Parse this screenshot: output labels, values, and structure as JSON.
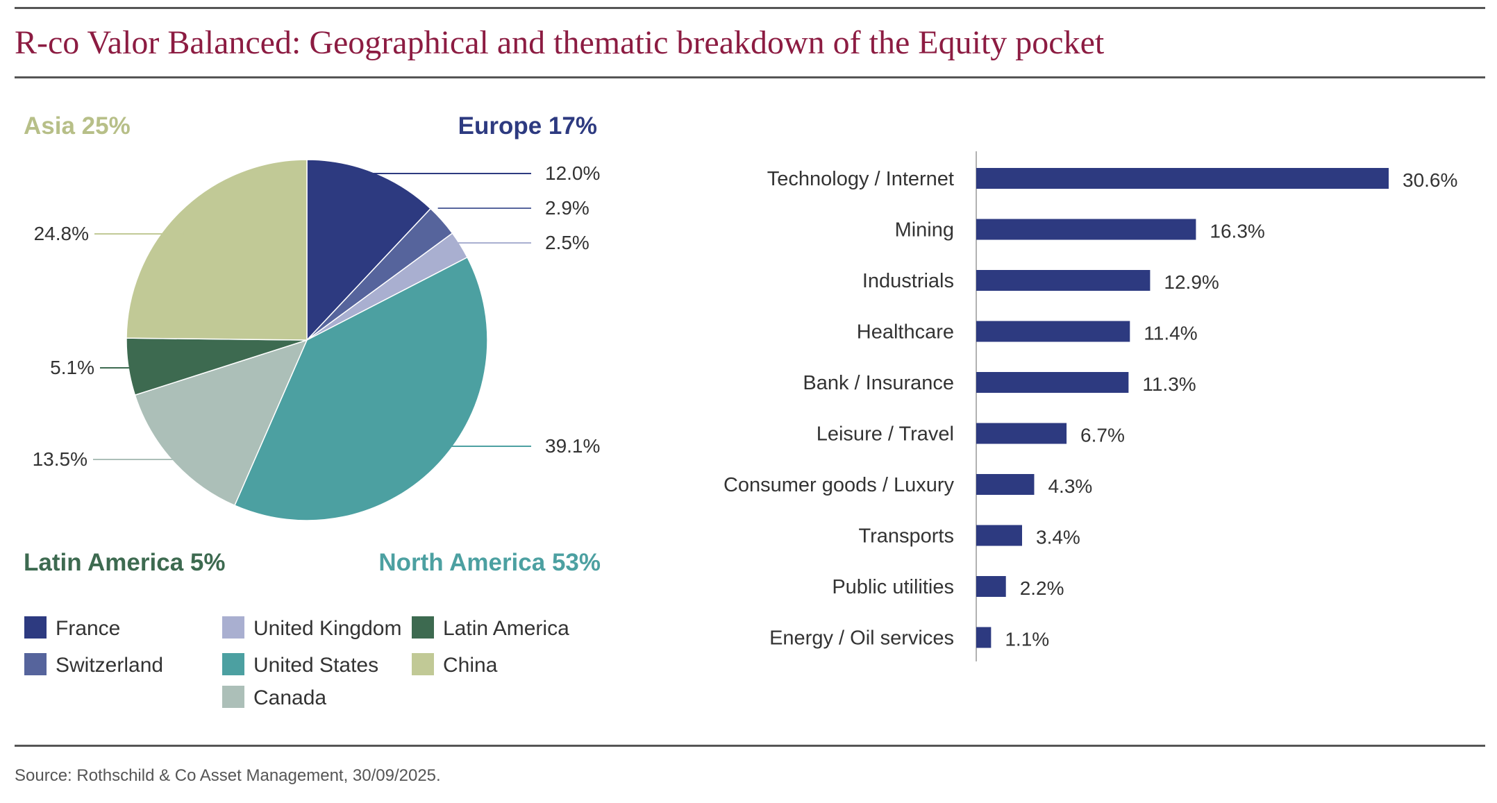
{
  "title": "R-co Valor Balanced: Geographical and thematic breakdown of the Equity pocket",
  "source": "Source: Rothschild & Co Asset Management, 30/09/2025.",
  "colors": {
    "France": "#2d3a80",
    "Switzerland": "#56649c",
    "United Kingdom": "#a9afd0",
    "United States": "#4ca0a1",
    "Canada": "#acbfb8",
    "Latin America": "#3d6a50",
    "China": "#c1c996",
    "bar": "#2d3a80",
    "title": "#8c1c42"
  },
  "chart_data": [
    {
      "type": "pie",
      "slices": [
        {
          "name": "France",
          "value": 12.0,
          "label": "12.0%"
        },
        {
          "name": "Switzerland",
          "value": 2.9,
          "label": "2.9%"
        },
        {
          "name": "United Kingdom",
          "value": 2.5,
          "label": "2.5%"
        },
        {
          "name": "United States",
          "value": 39.1,
          "label": "39.1%"
        },
        {
          "name": "Canada",
          "value": 13.5,
          "label": "13.5%"
        },
        {
          "name": "Latin America",
          "value": 5.1,
          "label": "5.1%"
        },
        {
          "name": "China",
          "value": 24.8,
          "label": "24.8%"
        }
      ],
      "regions": [
        {
          "label": "Asia 25%",
          "color": "#b7bf88"
        },
        {
          "label": "Europe 17%",
          "color": "#2d3a80"
        },
        {
          "label": "Latin America 5%",
          "color": "#3d6a50"
        },
        {
          "label": "North America 53%",
          "color": "#4ca0a1"
        }
      ],
      "legend": [
        "France",
        "Switzerland",
        "United Kingdom",
        "United States",
        "Canada",
        "Latin America",
        "China"
      ]
    },
    {
      "type": "bar",
      "orientation": "horizontal",
      "categories": [
        "Technology / Internet",
        "Mining",
        "Industrials",
        "Healthcare",
        "Bank / Insurance",
        "Leisure / Travel",
        "Consumer goods / Luxury",
        "Transports",
        "Public utilities",
        "Energy / Oil services"
      ],
      "values": [
        30.6,
        16.3,
        12.9,
        11.4,
        11.3,
        6.7,
        4.3,
        3.4,
        2.2,
        1.1
      ],
      "labels": [
        "30.6%",
        "16.3%",
        "12.9%",
        "11.4%",
        "11.3%",
        "6.7%",
        "4.3%",
        "3.4%",
        "2.2%",
        "1.1%"
      ],
      "xlim": [
        0,
        30.6
      ]
    }
  ]
}
